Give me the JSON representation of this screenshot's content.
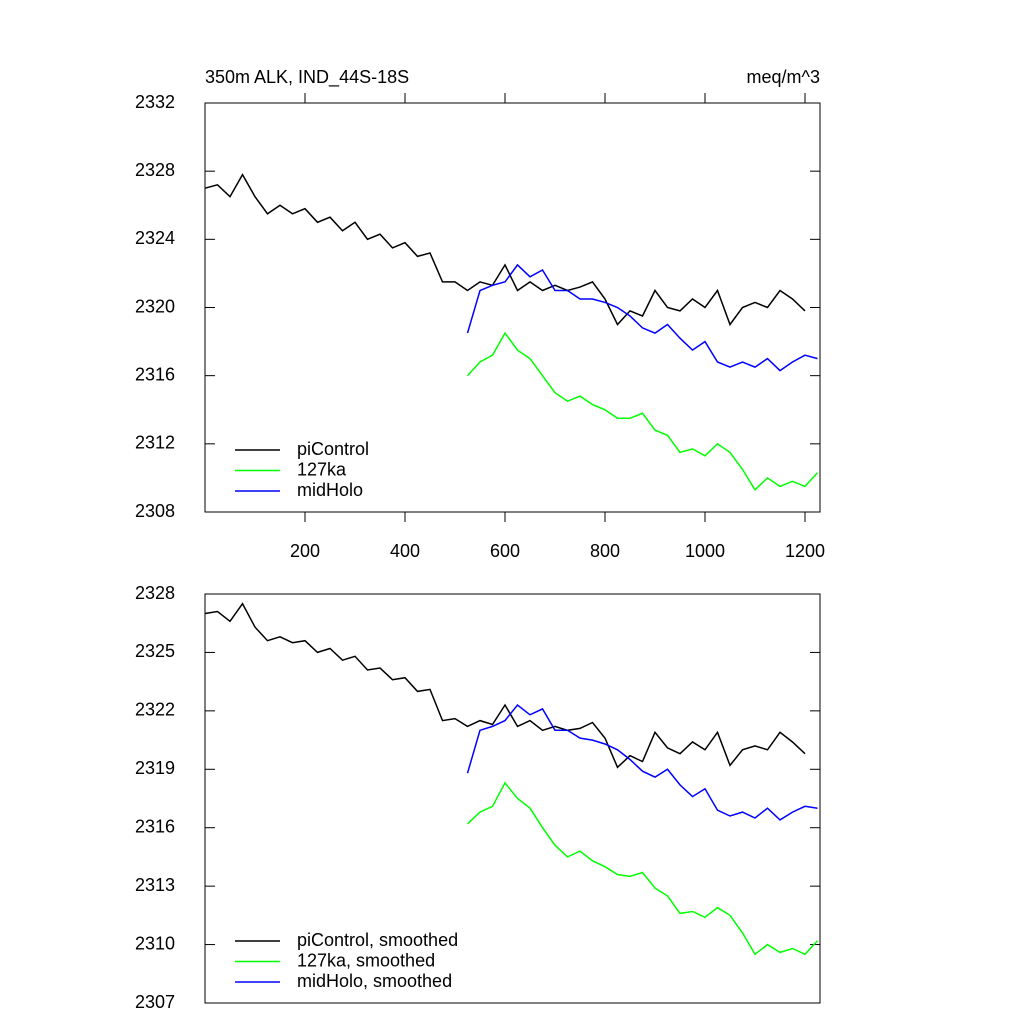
{
  "chart_data": [
    {
      "type": "line",
      "title": "350m ALK, IND_44S-18S",
      "units": "meq/m^3",
      "xlim": [
        0,
        1230
      ],
      "xticks": [
        200,
        400,
        600,
        800,
        1000,
        1200
      ],
      "ylim": [
        2308,
        2332
      ],
      "yticks": [
        2308,
        2312,
        2316,
        2320,
        2324,
        2328,
        2332
      ],
      "legend": "lower left",
      "series": [
        {
          "name": "piControl",
          "color": "#000000",
          "x": [
            0,
            25,
            50,
            75,
            100,
            125,
            150,
            175,
            200,
            225,
            250,
            275,
            300,
            325,
            350,
            375,
            400,
            425,
            450,
            475,
            500,
            525,
            550,
            575,
            600,
            625,
            650,
            675,
            700,
            725,
            750,
            775,
            800,
            825,
            850,
            875,
            900,
            925,
            950,
            975,
            1000,
            1025,
            1050,
            1075,
            1100,
            1125,
            1150,
            1175,
            1200
          ],
          "values": [
            2327,
            2327.2,
            2326.5,
            2327.8,
            2326.5,
            2325.5,
            2326,
            2325.5,
            2325.8,
            2325,
            2325.3,
            2324.5,
            2325,
            2324,
            2324.3,
            2323.5,
            2323.8,
            2323,
            2323.2,
            2321.5,
            2321.5,
            2321,
            2321.5,
            2321.3,
            2322.5,
            2321,
            2321.5,
            2321,
            2321.3,
            2321,
            2321.2,
            2321.5,
            2320.5,
            2319,
            2319.8,
            2319.5,
            2321,
            2320,
            2319.8,
            2320.5,
            2320,
            2321,
            2319,
            2320,
            2320.3,
            2320,
            2321,
            2320.5,
            2319.8
          ]
        },
        {
          "name": "127ka",
          "color": "#00ff00",
          "x": [
            525,
            550,
            575,
            600,
            625,
            650,
            675,
            700,
            725,
            750,
            775,
            800,
            825,
            850,
            875,
            900,
            925,
            950,
            975,
            1000,
            1025,
            1050,
            1075,
            1100,
            1125,
            1150,
            1175,
            1200,
            1225
          ],
          "values": [
            2316,
            2316.8,
            2317.2,
            2318.5,
            2317.5,
            2317,
            2316,
            2315,
            2314.5,
            2314.8,
            2314.3,
            2314,
            2313.5,
            2313.5,
            2313.8,
            2312.8,
            2312.5,
            2311.5,
            2311.7,
            2311.3,
            2312,
            2311.5,
            2310.5,
            2309.3,
            2310,
            2309.5,
            2309.8,
            2309.5,
            2310.3
          ]
        },
        {
          "name": "midHolo",
          "color": "#0000ff",
          "x": [
            525,
            550,
            575,
            600,
            625,
            650,
            675,
            700,
            725,
            750,
            775,
            800,
            825,
            850,
            875,
            900,
            925,
            950,
            975,
            1000,
            1025,
            1050,
            1075,
            1100,
            1125,
            1150,
            1175,
            1200,
            1225
          ],
          "values": [
            2318.5,
            2321,
            2321.3,
            2321.5,
            2322.5,
            2321.8,
            2322.2,
            2321,
            2321,
            2320.5,
            2320.5,
            2320.3,
            2320,
            2319.5,
            2318.8,
            2318.5,
            2319,
            2318.2,
            2317.5,
            2318,
            2316.8,
            2316.5,
            2316.8,
            2316.5,
            2317,
            2316.3,
            2316.8,
            2317.2,
            2317
          ]
        }
      ]
    },
    {
      "type": "line",
      "xlim": [
        0,
        1230
      ],
      "ylim": [
        2307,
        2328
      ],
      "yticks": [
        2307,
        2310,
        2313,
        2316,
        2319,
        2322,
        2325,
        2328
      ],
      "legend": "lower left",
      "series": [
        {
          "name": "piControl, smoothed",
          "color": "#000000",
          "x": [
            0,
            25,
            50,
            75,
            100,
            125,
            150,
            175,
            200,
            225,
            250,
            275,
            300,
            325,
            350,
            375,
            400,
            425,
            450,
            475,
            500,
            525,
            550,
            575,
            600,
            625,
            650,
            675,
            700,
            725,
            750,
            775,
            800,
            825,
            850,
            875,
            900,
            925,
            950,
            975,
            1000,
            1025,
            1050,
            1075,
            1100,
            1125,
            1150,
            1175,
            1200
          ],
          "values": [
            2327,
            2327.1,
            2326.6,
            2327.5,
            2326.3,
            2325.6,
            2325.8,
            2325.5,
            2325.6,
            2325,
            2325.2,
            2324.6,
            2324.8,
            2324.1,
            2324.2,
            2323.6,
            2323.7,
            2323,
            2323.1,
            2321.5,
            2321.6,
            2321.2,
            2321.5,
            2321.3,
            2322.3,
            2321.2,
            2321.5,
            2321,
            2321.2,
            2321,
            2321.1,
            2321.4,
            2320.6,
            2319.1,
            2319.7,
            2319.4,
            2320.9,
            2320.1,
            2319.8,
            2320.4,
            2320,
            2320.9,
            2319.2,
            2320,
            2320.2,
            2320,
            2320.9,
            2320.4,
            2319.8
          ]
        },
        {
          "name": "127ka, smoothed",
          "color": "#00ff00",
          "x": [
            525,
            550,
            575,
            600,
            625,
            650,
            675,
            700,
            725,
            750,
            775,
            800,
            825,
            850,
            875,
            900,
            925,
            950,
            975,
            1000,
            1025,
            1050,
            1075,
            1100,
            1125,
            1150,
            1175,
            1200,
            1225
          ],
          "values": [
            2316.2,
            2316.8,
            2317.1,
            2318.3,
            2317.5,
            2317,
            2316,
            2315.1,
            2314.5,
            2314.8,
            2314.3,
            2314,
            2313.6,
            2313.5,
            2313.7,
            2312.9,
            2312.5,
            2311.6,
            2311.7,
            2311.4,
            2311.9,
            2311.5,
            2310.6,
            2309.5,
            2310,
            2309.6,
            2309.8,
            2309.5,
            2310.2
          ]
        },
        {
          "name": "midHolo, smoothed",
          "color": "#0000ff",
          "x": [
            525,
            550,
            575,
            600,
            625,
            650,
            675,
            700,
            725,
            750,
            775,
            800,
            825,
            850,
            875,
            900,
            925,
            950,
            975,
            1000,
            1025,
            1050,
            1075,
            1100,
            1125,
            1150,
            1175,
            1200,
            1225
          ],
          "values": [
            2318.8,
            2321,
            2321.2,
            2321.5,
            2322.3,
            2321.8,
            2322.1,
            2321,
            2321,
            2320.6,
            2320.5,
            2320.3,
            2320,
            2319.5,
            2318.9,
            2318.6,
            2319,
            2318.2,
            2317.6,
            2318,
            2316.9,
            2316.6,
            2316.8,
            2316.5,
            2317,
            2316.4,
            2316.8,
            2317.1,
            2317
          ]
        }
      ]
    }
  ]
}
